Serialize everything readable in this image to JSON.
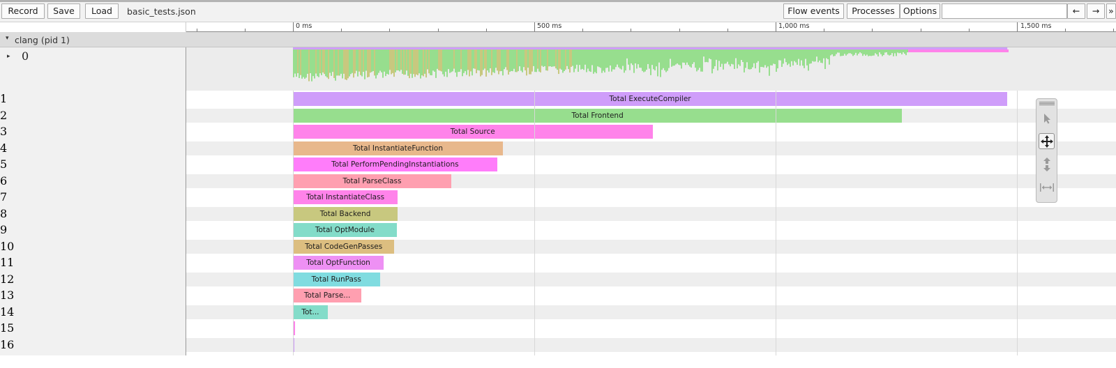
{
  "toolbar": {
    "record_label": "Record",
    "save_label": "Save",
    "load_label": "Load",
    "filename": "basic_tests.json",
    "flow_events_label": "Flow events",
    "processes_label": "Processes",
    "options_label": "Options",
    "search_value": "",
    "prev_label": "←",
    "next_label": "→",
    "more_label": "»"
  },
  "ruler": {
    "labels": [
      "0 ms",
      "500 ms",
      "1,000 ms",
      "1,500 ms"
    ]
  },
  "process": {
    "arrow": "▾",
    "title": "clang (pid 1)"
  },
  "thread0": {
    "arrow": "▸",
    "label": "0"
  },
  "rows": [
    {
      "label": "1",
      "slice": "Total ExecuteCompiler",
      "color": "#cf9dfa"
    },
    {
      "label": "2",
      "slice": "Total Frontend",
      "color": "#97de8e"
    },
    {
      "label": "3",
      "slice": "Total Source",
      "color": "#ff83ea"
    },
    {
      "label": "4",
      "slice": "Total InstantiateFunction",
      "color": "#e8b88c"
    },
    {
      "label": "5",
      "slice": "Total PerformPendingInstantiations",
      "color": "#ff7dfa"
    },
    {
      "label": "6",
      "slice": "Total ParseClass",
      "color": "#ff9fb0"
    },
    {
      "label": "7",
      "slice": "Total InstantiateClass",
      "color": "#ff83ea"
    },
    {
      "label": "8",
      "slice": "Total Backend",
      "color": "#c8c87f"
    },
    {
      "label": "9",
      "slice": "Total OptModule",
      "color": "#83dcc9"
    },
    {
      "label": "10",
      "slice": "Total CodeGenPasses",
      "color": "#dcbe80"
    },
    {
      "label": "11",
      "slice": "Total OptFunction",
      "color": "#ee90f4"
    },
    {
      "label": "12",
      "slice": "Total RunPass",
      "color": "#80dce0"
    },
    {
      "label": "13",
      "slice": "Total Parse...",
      "color": "#ff9fb0"
    },
    {
      "label": "14",
      "slice": "Tot...",
      "color": "#83dcc9"
    },
    {
      "label": "15",
      "slice": "",
      "color": "#ff83ea"
    },
    {
      "label": "16",
      "slice": "",
      "color": "#cf9dfa"
    }
  ],
  "slice_durations_ms": [
    1480,
    1262,
    745,
    435,
    423,
    328,
    217,
    217,
    215,
    210,
    188,
    180,
    142,
    72,
    5,
    2
  ],
  "colors": {
    "overview_green": "#97de8e",
    "overview_yellow": "#c8c87f",
    "overview_pink": "#ff83ea",
    "overview_purple": "#cf9dfa"
  },
  "mouse_modes": {
    "icons": [
      "grip-icon",
      "select-cursor-icon",
      "pan-icon",
      "zoom-icon",
      "timing-icon"
    ]
  }
}
